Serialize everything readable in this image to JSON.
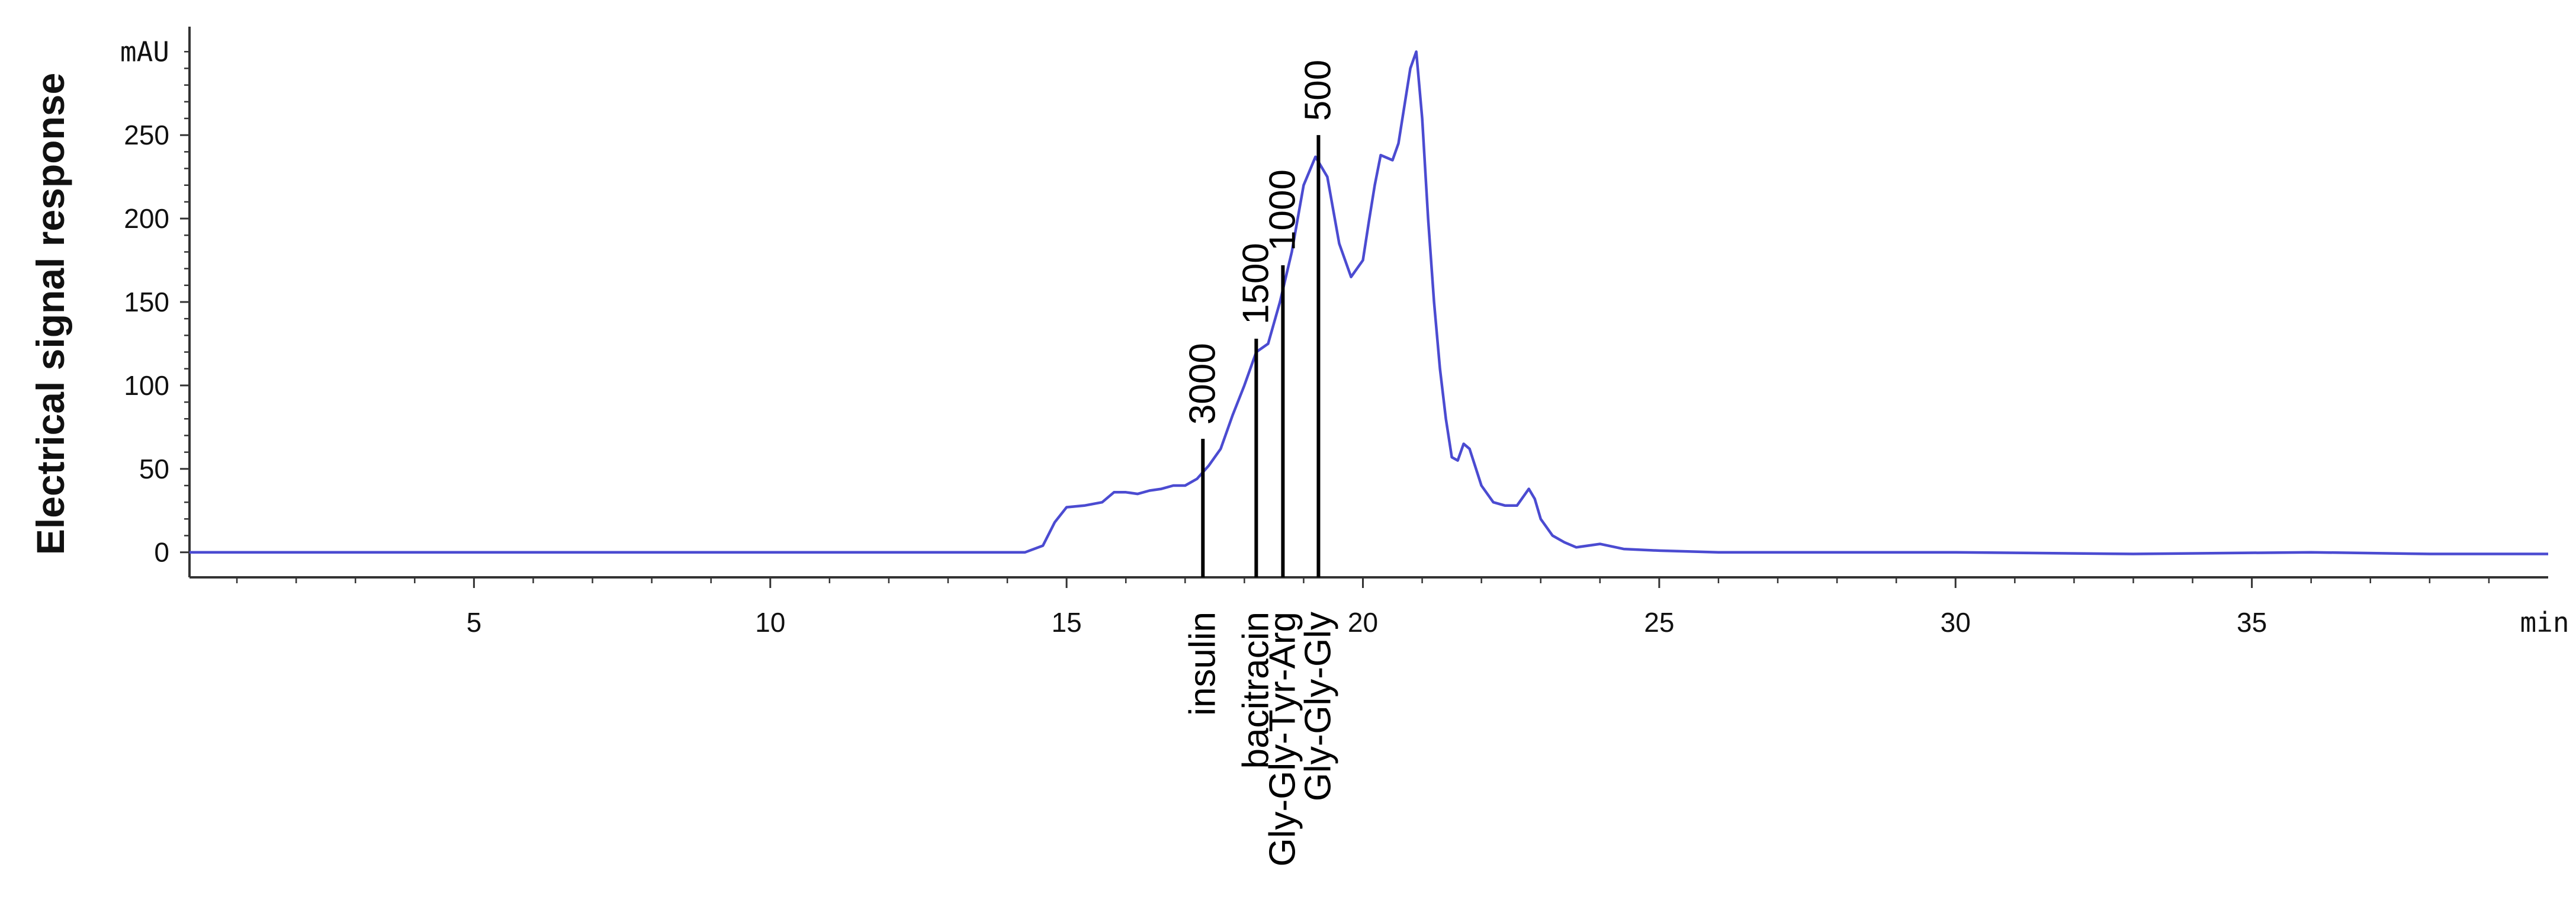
{
  "chart_data": {
    "type": "line",
    "title": "",
    "xlabel": "",
    "ylabel": "Electrical signal response",
    "x_unit": "min",
    "y_unit": "mAU",
    "xlim": [
      0.2,
      40.0
    ],
    "ylim": [
      -15,
      315
    ],
    "x_ticks": [
      "5",
      "10",
      "15",
      "20",
      "25",
      "30",
      "35"
    ],
    "y_ticks": [
      "0",
      "50",
      "100",
      "150",
      "200",
      "250"
    ],
    "series": [
      {
        "color": "#4b4bd1",
        "x": [
          0.2,
          4.0,
          8.0,
          12.0,
          14.3,
          14.6,
          14.8,
          15.0,
          15.3,
          15.6,
          15.8,
          16.0,
          16.2,
          16.4,
          16.6,
          16.8,
          17.0,
          17.2,
          17.4,
          17.6,
          17.8,
          18.0,
          18.2,
          18.4,
          18.6,
          18.8,
          19.0,
          19.2,
          19.4,
          19.6,
          19.8,
          20.0,
          20.1,
          20.2,
          20.3,
          20.5,
          20.6,
          20.8,
          20.9,
          21.0,
          21.1,
          21.2,
          21.3,
          21.4,
          21.5,
          21.6,
          21.7,
          21.8,
          22.0,
          22.2,
          22.4,
          22.6,
          22.8,
          22.9,
          23.0,
          23.2,
          23.4,
          23.6,
          24.0,
          24.4,
          25.0,
          26.0,
          27.0,
          30.0,
          33.0,
          36.0,
          38.0,
          40.0
        ],
        "y": [
          0,
          0,
          0,
          0,
          0,
          4,
          18,
          27,
          28,
          30,
          36,
          36,
          35,
          37,
          38,
          40,
          40,
          44,
          52,
          62,
          82,
          100,
          120,
          125,
          150,
          180,
          220,
          237,
          225,
          185,
          165,
          175,
          198,
          220,
          238,
          235,
          245,
          290,
          300,
          260,
          200,
          150,
          110,
          80,
          57,
          55,
          65,
          62,
          40,
          30,
          28,
          28,
          38,
          32,
          20,
          10,
          6,
          3,
          5,
          2,
          1,
          0,
          0,
          0,
          -1,
          0,
          -1,
          -1
        ]
      }
    ],
    "standards": [
      {
        "x": 17.3,
        "top": 68,
        "mw": "3000",
        "name": "insulin"
      },
      {
        "x": 18.2,
        "top": 128,
        "mw": "1500",
        "name": "bacitracin"
      },
      {
        "x": 18.65,
        "top": 172,
        "mw": "1000",
        "name": "Gly-Gly-Tyr-Arg"
      },
      {
        "x": 19.25,
        "top": 250,
        "mw": "500",
        "name": "Gly-Gly-Gly"
      }
    ]
  }
}
